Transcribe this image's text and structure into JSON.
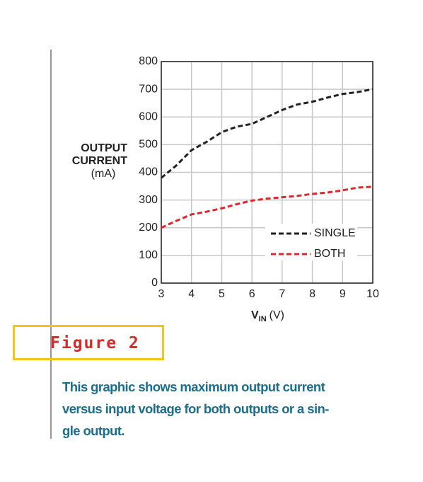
{
  "chart_data": {
    "type": "line",
    "ylabel": [
      "OUTPUT",
      "CURRENT",
      "(mA)"
    ],
    "xlabel": {
      "main": "V",
      "sub": "IN",
      "unit": "(V)"
    },
    "xlim": [
      3,
      10
    ],
    "xticks": [
      3,
      4,
      5,
      6,
      7,
      8,
      9,
      10
    ],
    "ylim": [
      0,
      800
    ],
    "yticks": [
      0,
      100,
      200,
      300,
      400,
      500,
      600,
      700,
      800
    ],
    "grid": true,
    "legend": "lower right",
    "x": [
      3,
      3.5,
      4,
      4.5,
      5,
      5.5,
      6,
      6.5,
      7,
      7.5,
      8,
      8.5,
      9,
      9.5,
      10
    ],
    "series": [
      {
        "name": "SINGLE",
        "color": "#222222",
        "values": [
          380,
          425,
          480,
          510,
          545,
          565,
          575,
          600,
          625,
          645,
          655,
          670,
          683,
          690,
          700
        ]
      },
      {
        "name": "BOTH",
        "color": "#e0252c",
        "values": [
          200,
          225,
          248,
          258,
          270,
          285,
          298,
          305,
          310,
          315,
          322,
          327,
          335,
          345,
          348
        ]
      }
    ]
  },
  "figure": {
    "label": "Figure 2",
    "caption": [
      "This graphic shows maximum output current",
      "versus input voltage for both outputs or a sin-",
      "gle output."
    ]
  }
}
